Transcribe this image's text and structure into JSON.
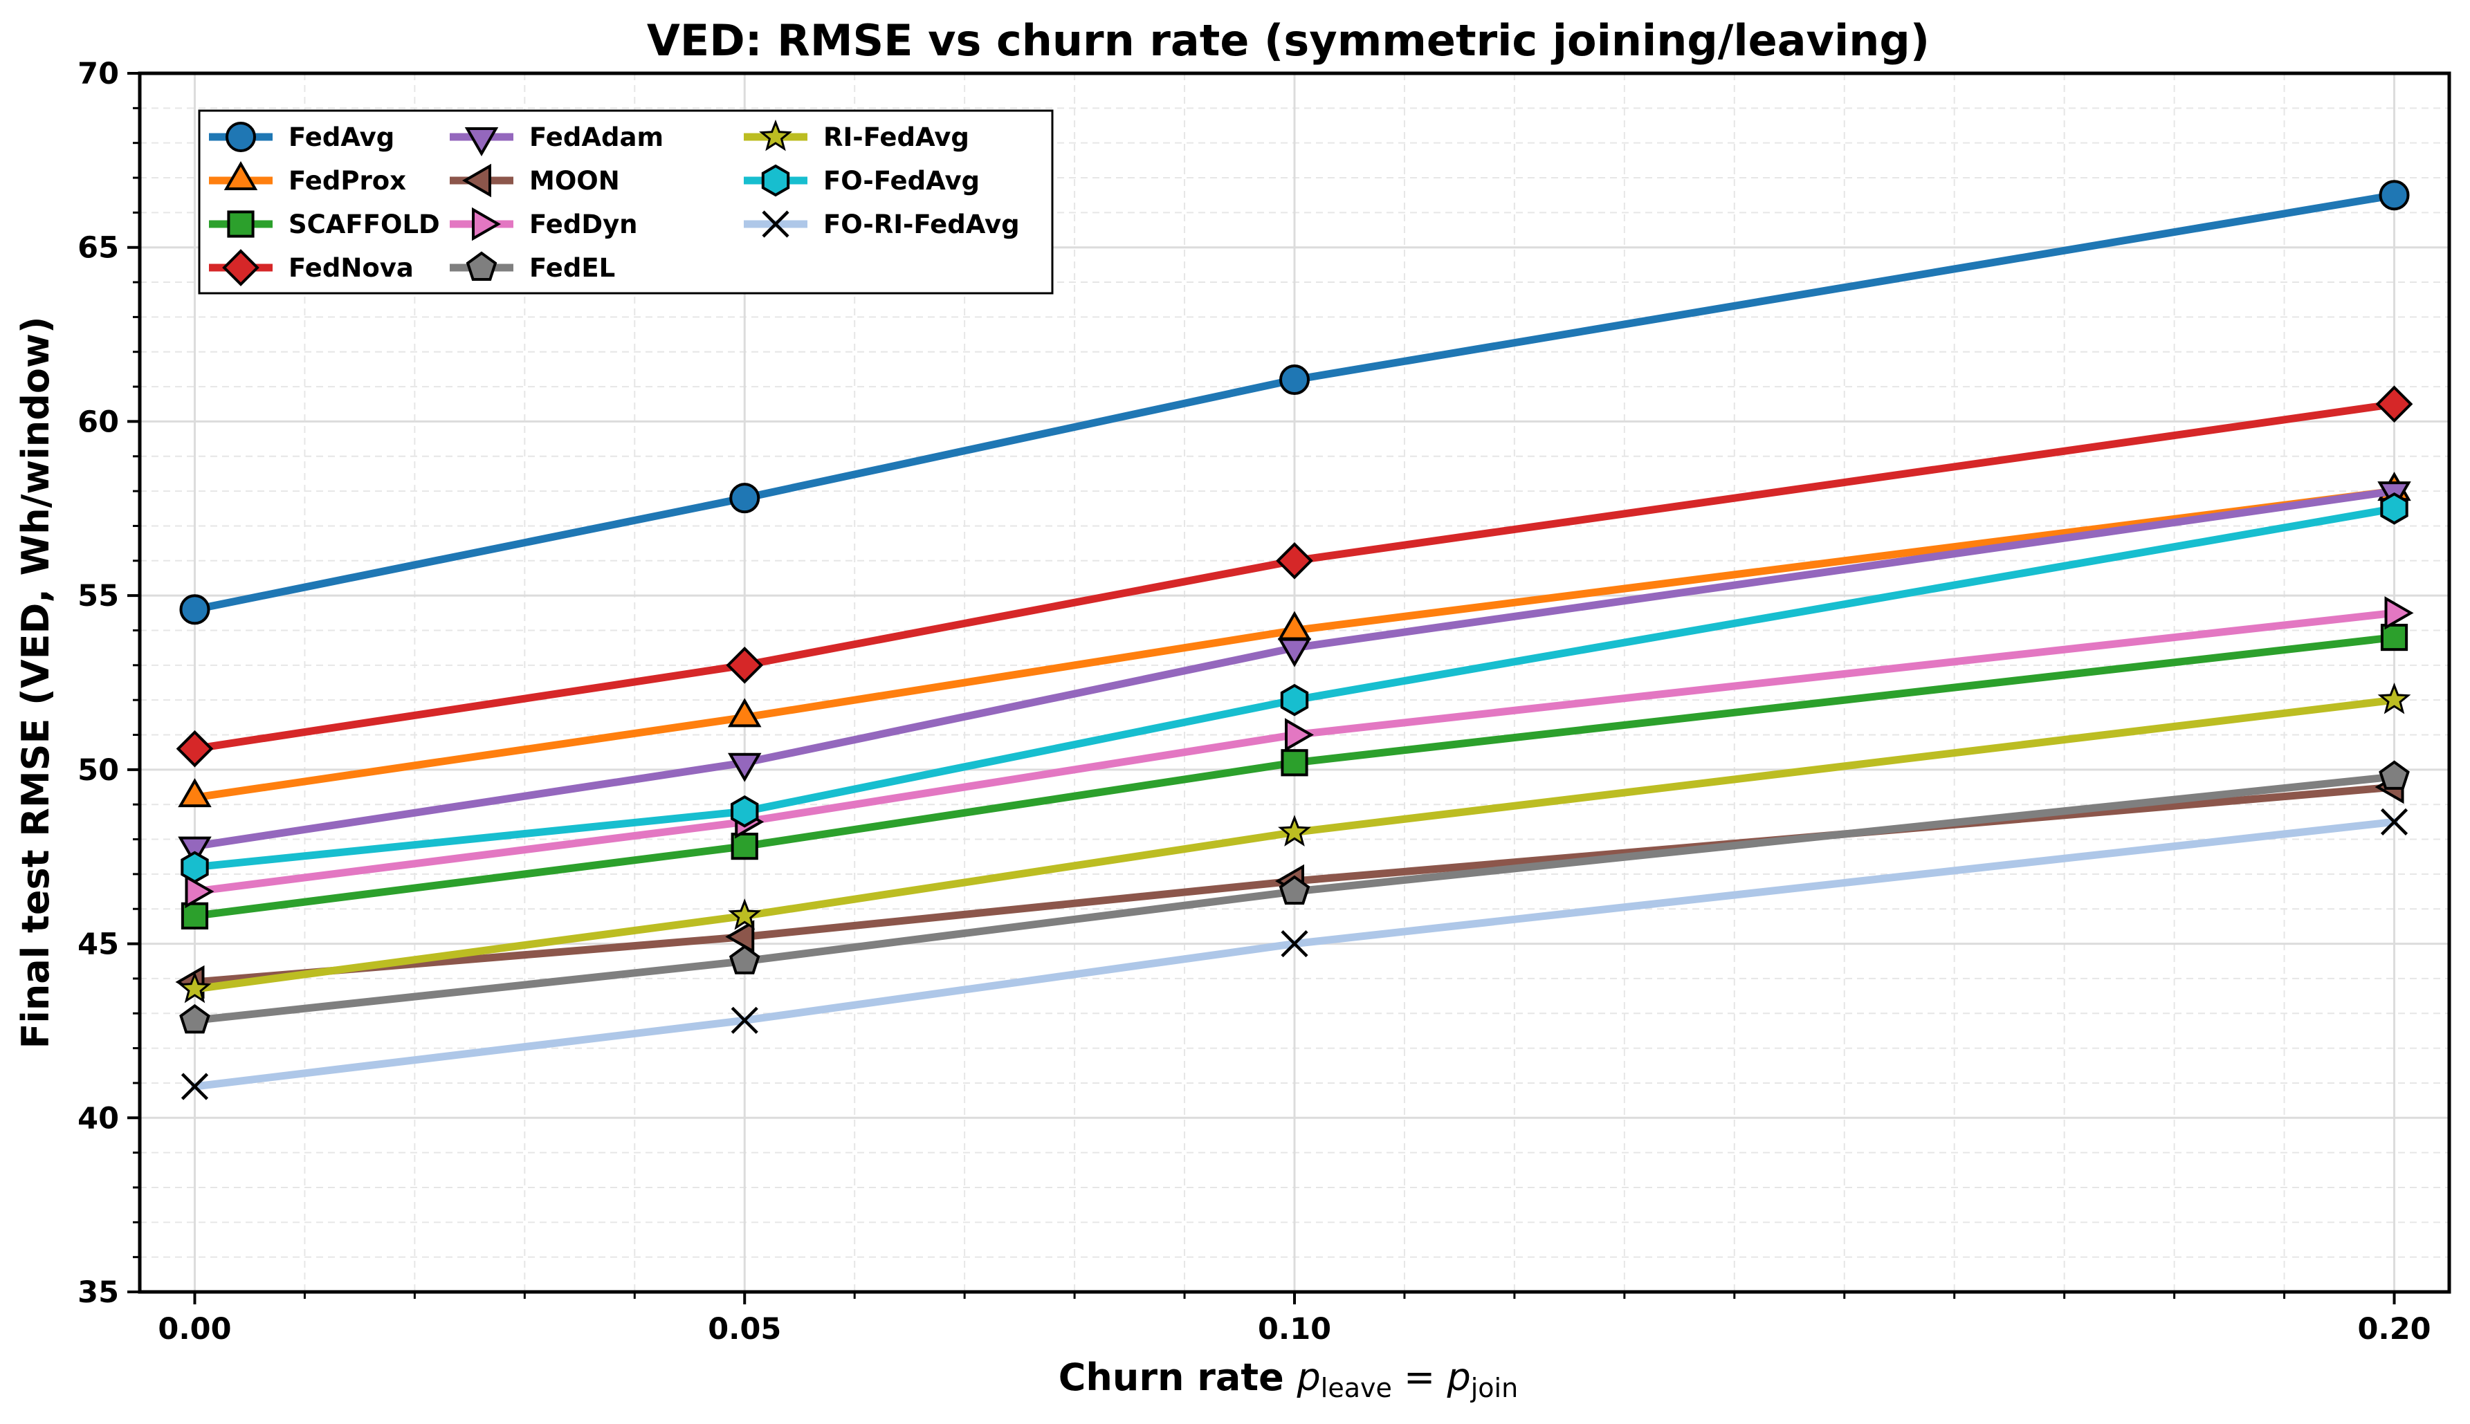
{
  "chart_data": {
    "type": "line",
    "title": "VED: RMSE vs churn rate (symmetric joining/leaving)",
    "xlabel_prefix": "Churn rate ",
    "xlabel_math": {
      "p1": "p",
      "sub1": "leave",
      "eq": " = ",
      "p2": "p",
      "sub2": "join"
    },
    "ylabel": "Final test RMSE (VED, Wh/window)",
    "x": [
      0.0,
      0.05,
      0.1,
      0.2
    ],
    "x_tick_labels": [
      "0.00",
      "0.05",
      "0.10",
      "0.20"
    ],
    "xlim": [
      -0.005,
      0.205
    ],
    "ylim": [
      35,
      70
    ],
    "y_ticks": [
      35,
      40,
      45,
      50,
      55,
      60,
      65,
      70
    ],
    "y_tick_labels": [
      "35",
      "40",
      "45",
      "50",
      "55",
      "60",
      "65",
      "70"
    ],
    "grid": true,
    "legend_position": "top-left",
    "legend_columns": 3,
    "series": [
      {
        "name": "FedAvg",
        "color": "#1f77b4",
        "marker": "circle",
        "values": [
          54.6,
          57.8,
          61.2,
          66.5
        ]
      },
      {
        "name": "FedProx",
        "color": "#ff7f0e",
        "marker": "triangle-up",
        "values": [
          49.2,
          51.5,
          54.0,
          58.0
        ]
      },
      {
        "name": "SCAFFOLD",
        "color": "#2ca02c",
        "marker": "square",
        "values": [
          45.8,
          47.8,
          50.2,
          53.8
        ]
      },
      {
        "name": "FedNova",
        "color": "#d62728",
        "marker": "diamond",
        "values": [
          50.6,
          53.0,
          56.0,
          60.5
        ]
      },
      {
        "name": "FedAdam",
        "color": "#9467bd",
        "marker": "triangle-down",
        "values": [
          47.8,
          50.2,
          53.5,
          58.0
        ]
      },
      {
        "name": "MOON",
        "color": "#8c564b",
        "marker": "triangle-left",
        "values": [
          43.9,
          45.2,
          46.8,
          49.5
        ]
      },
      {
        "name": "FedDyn",
        "color": "#e377c2",
        "marker": "triangle-right",
        "values": [
          46.5,
          48.5,
          51.0,
          54.5
        ]
      },
      {
        "name": "FedEL",
        "color": "#7f7f7f",
        "marker": "pentagon",
        "values": [
          42.8,
          44.5,
          46.5,
          49.8
        ]
      },
      {
        "name": "RI-FedAvg",
        "color": "#bcbd22",
        "marker": "star",
        "values": [
          43.7,
          45.8,
          48.2,
          52.0
        ]
      },
      {
        "name": "FO-FedAvg",
        "color": "#17becf",
        "marker": "hexagon",
        "values": [
          47.2,
          48.8,
          52.0,
          57.5
        ]
      },
      {
        "name": "FO-RI-FedAvg",
        "color": "#aec7e8",
        "marker": "x",
        "values": [
          40.9,
          42.8,
          45.0,
          48.5
        ]
      }
    ]
  }
}
